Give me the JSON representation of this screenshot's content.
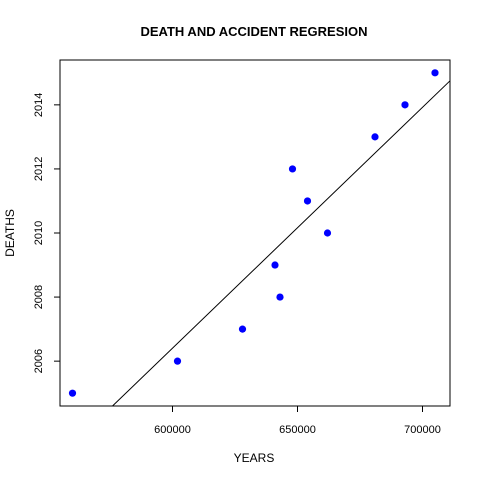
{
  "chart_data": {
    "type": "scatter",
    "title": "DEATH AND ACCIDENT REGRESION",
    "xlabel": "YEARS",
    "ylabel": "DEATHS",
    "xlim": [
      555000,
      711000
    ],
    "ylim": [
      2004.6,
      2015.4
    ],
    "x_ticks": [
      600000,
      650000,
      700000
    ],
    "y_ticks": [
      2006,
      2008,
      2010,
      2012,
      2014
    ],
    "grid": false,
    "point_color": "#0000ff",
    "line_color": "#000000",
    "points": [
      {
        "x": 560000,
        "y": 2005
      },
      {
        "x": 602000,
        "y": 2006
      },
      {
        "x": 628000,
        "y": 2007
      },
      {
        "x": 643000,
        "y": 2008
      },
      {
        "x": 641000,
        "y": 2009
      },
      {
        "x": 662000,
        "y": 2010
      },
      {
        "x": 654000,
        "y": 2011
      },
      {
        "x": 648000,
        "y": 2012
      },
      {
        "x": 681000,
        "y": 2013
      },
      {
        "x": 693000,
        "y": 2014
      },
      {
        "x": 705000,
        "y": 2015
      }
    ],
    "regression_line": {
      "from": {
        "x": 576000,
        "y": 2004.6
      },
      "to": {
        "x": 711000,
        "y": 2014.75
      }
    }
  }
}
